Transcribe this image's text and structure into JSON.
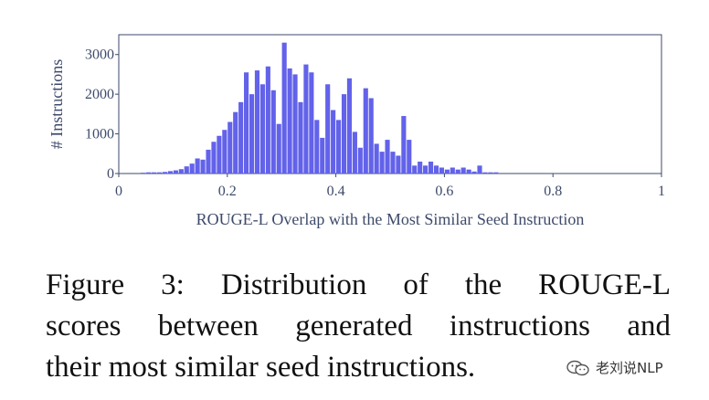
{
  "chart_data": {
    "type": "bar",
    "title": "",
    "xlabel": "ROUGE-L Overlap with the Most Similar Seed Instruction",
    "ylabel": "# Instructions",
    "xlim": [
      0,
      1
    ],
    "ylim": [
      0,
      3500
    ],
    "xticks": [
      0,
      0.2,
      0.4,
      0.6,
      0.8,
      1
    ],
    "xtick_labels": [
      "0",
      "0.2",
      "0.4",
      "0.6",
      "0.8",
      "1"
    ],
    "yticks": [
      0,
      1000,
      2000,
      3000
    ],
    "ytick_labels": [
      "0",
      "1000",
      "2000",
      "3000"
    ],
    "grid": false,
    "bar_color": "#6262ea",
    "bin_width": 0.01,
    "x": [
      0.045,
      0.055,
      0.065,
      0.075,
      0.085,
      0.095,
      0.105,
      0.115,
      0.125,
      0.135,
      0.145,
      0.155,
      0.165,
      0.175,
      0.185,
      0.195,
      0.205,
      0.215,
      0.225,
      0.235,
      0.245,
      0.255,
      0.265,
      0.275,
      0.285,
      0.295,
      0.305,
      0.315,
      0.325,
      0.335,
      0.345,
      0.355,
      0.365,
      0.375,
      0.385,
      0.395,
      0.405,
      0.415,
      0.425,
      0.435,
      0.445,
      0.455,
      0.465,
      0.475,
      0.485,
      0.495,
      0.505,
      0.515,
      0.525,
      0.535,
      0.545,
      0.555,
      0.565,
      0.575,
      0.585,
      0.595,
      0.605,
      0.615,
      0.625,
      0.635,
      0.645,
      0.655,
      0.665,
      0.675,
      0.685,
      0.695
    ],
    "values": [
      20,
      30,
      30,
      30,
      40,
      60,
      80,
      110,
      180,
      250,
      380,
      350,
      600,
      800,
      950,
      1100,
      1300,
      1550,
      1800,
      2550,
      2000,
      2600,
      2250,
      2700,
      2100,
      1250,
      3300,
      2650,
      2500,
      1800,
      2750,
      2550,
      1350,
      900,
      2250,
      1600,
      1350,
      2000,
      2400,
      1050,
      650,
      2150,
      1900,
      750,
      550,
      850,
      550,
      450,
      1450,
      850,
      200,
      300,
      200,
      300,
      200,
      150,
      100,
      150,
      100,
      150,
      100,
      50,
      200,
      30,
      30,
      30
    ]
  },
  "caption": {
    "line1": "Figure 3:  Distribution of the ROUGE-L",
    "line2": "scores between generated instructions and",
    "line3": "their most similar seed instructions."
  },
  "watermark": {
    "icon": "wechat-icon",
    "text": "老刘说NLP"
  }
}
